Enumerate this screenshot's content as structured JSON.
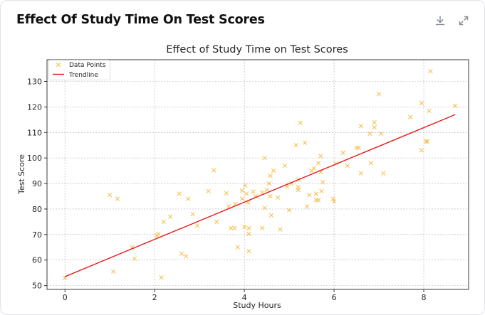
{
  "card": {
    "title": "Effect Of Study Time On Test Scores",
    "actions": [
      {
        "name": "download",
        "icon": "download-icon"
      },
      {
        "name": "expand",
        "icon": "expand-icon"
      }
    ]
  },
  "chart_data": {
    "type": "scatter",
    "title": "Effect of Study Time on Test Scores",
    "xlabel": "Study Hours",
    "ylabel": "Test Score",
    "xlim": [
      -0.4,
      9.0
    ],
    "ylim": [
      48.5,
      138.5
    ],
    "x_ticks": [
      0,
      2,
      4,
      6,
      8
    ],
    "y_ticks": [
      50,
      60,
      70,
      80,
      90,
      100,
      110,
      120,
      130
    ],
    "grid": true,
    "legend": {
      "placement": "top-left",
      "entries": [
        {
          "label": "Data Points",
          "marker": "x",
          "color": "#f5b93b"
        },
        {
          "label": "Trendline",
          "marker": "line",
          "color": "#e8191a"
        }
      ]
    },
    "series": [
      {
        "name": "Data Points",
        "kind": "scatter",
        "marker": "x",
        "color": "#f5b93b",
        "points": [
          [
            0.0,
            53.0
          ],
          [
            1.0,
            85.5
          ],
          [
            1.08,
            55.5
          ],
          [
            1.17,
            84.0
          ],
          [
            1.5,
            65.0
          ],
          [
            1.55,
            60.5
          ],
          [
            2.05,
            69.5
          ],
          [
            2.08,
            70.2
          ],
          [
            2.15,
            53.2
          ],
          [
            2.2,
            75.0
          ],
          [
            2.35,
            77.0
          ],
          [
            2.55,
            86.0
          ],
          [
            2.6,
            62.5
          ],
          [
            2.7,
            61.5
          ],
          [
            2.75,
            84.0
          ],
          [
            2.85,
            78.0
          ],
          [
            2.95,
            73.5
          ],
          [
            3.2,
            87.0
          ],
          [
            3.32,
            95.2
          ],
          [
            3.38,
            75.0
          ],
          [
            3.6,
            86.2
          ],
          [
            3.65,
            81.0
          ],
          [
            3.7,
            72.5
          ],
          [
            3.78,
            72.5
          ],
          [
            3.8,
            82.0
          ],
          [
            3.85,
            65.0
          ],
          [
            3.95,
            87.2
          ],
          [
            3.95,
            84.0
          ],
          [
            4.0,
            73.0
          ],
          [
            4.02,
            89.2
          ],
          [
            4.05,
            86.0
          ],
          [
            4.08,
            82.5
          ],
          [
            4.1,
            72.5
          ],
          [
            4.1,
            70.2
          ],
          [
            4.1,
            63.5
          ],
          [
            4.2,
            86.8
          ],
          [
            4.25,
            85.0
          ],
          [
            4.4,
            86.5
          ],
          [
            4.4,
            72.5
          ],
          [
            4.45,
            100.0
          ],
          [
            4.45,
            80.5
          ],
          [
            4.5,
            87.5
          ],
          [
            4.55,
            90.0
          ],
          [
            4.58,
            93.0
          ],
          [
            4.58,
            85.0
          ],
          [
            4.6,
            77.5
          ],
          [
            4.65,
            95.0
          ],
          [
            4.75,
            84.5
          ],
          [
            4.8,
            72.0
          ],
          [
            4.9,
            97.0
          ],
          [
            4.95,
            88.8
          ],
          [
            5.0,
            79.5
          ],
          [
            5.05,
            90.0
          ],
          [
            5.15,
            105.0
          ],
          [
            5.2,
            91.5
          ],
          [
            5.2,
            87.5
          ],
          [
            5.2,
            88.5
          ],
          [
            5.25,
            113.8
          ],
          [
            5.35,
            106.0
          ],
          [
            5.4,
            81.0
          ],
          [
            5.45,
            85.5
          ],
          [
            5.5,
            95.0
          ],
          [
            5.55,
            96.0
          ],
          [
            5.6,
            83.5
          ],
          [
            5.6,
            86.0
          ],
          [
            5.65,
            98.0
          ],
          [
            5.65,
            83.5
          ],
          [
            5.7,
            100.8
          ],
          [
            5.7,
            94.5
          ],
          [
            5.72,
            87.0
          ],
          [
            5.75,
            90.5
          ],
          [
            5.98,
            84.0
          ],
          [
            6.0,
            83.0
          ],
          [
            6.05,
            97.8
          ],
          [
            6.2,
            102.0
          ],
          [
            6.3,
            97.0
          ],
          [
            6.5,
            104.0
          ],
          [
            6.55,
            104.0
          ],
          [
            6.6,
            112.5
          ],
          [
            6.6,
            94.0
          ],
          [
            6.8,
            109.5
          ],
          [
            6.82,
            98.0
          ],
          [
            6.9,
            114.0
          ],
          [
            6.9,
            112.0
          ],
          [
            7.0,
            125.0
          ],
          [
            7.05,
            109.5
          ],
          [
            7.1,
            94.0
          ],
          [
            7.7,
            116.0
          ],
          [
            7.95,
            121.5
          ],
          [
            7.95,
            103.0
          ],
          [
            8.05,
            106.5
          ],
          [
            8.08,
            106.5
          ],
          [
            8.12,
            118.5
          ],
          [
            8.15,
            134.0
          ],
          [
            8.7,
            120.5
          ]
        ]
      },
      {
        "name": "Trendline",
        "kind": "line",
        "color": "#e8191a",
        "points": [
          [
            0.0,
            53.5
          ],
          [
            8.7,
            117.0
          ]
        ]
      }
    ]
  }
}
